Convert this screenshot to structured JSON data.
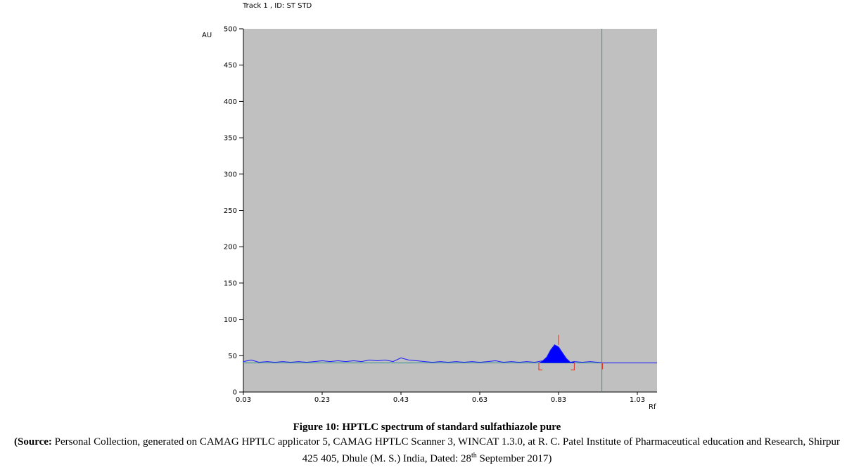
{
  "chart_data": {
    "type": "line",
    "title": "Track  1 , ID: ST STD",
    "xlabel": "Rf",
    "ylabel": "AU",
    "xlim": [
      0.03,
      1.08
    ],
    "ylim": [
      0,
      500
    ],
    "x_ticks": [
      "0.03",
      "0.23",
      "0.43",
      "0.63",
      "0.83",
      "1.03"
    ],
    "y_ticks": [
      "0",
      "50",
      "100",
      "150",
      "200",
      "250",
      "300",
      "350",
      "400",
      "450",
      "500"
    ],
    "baseline_au": 40,
    "front_rf": 0.94,
    "series": [
      {
        "x": [
          0.03,
          0.05,
          0.07,
          0.09,
          0.11,
          0.13,
          0.15,
          0.17,
          0.19,
          0.21,
          0.23,
          0.25,
          0.27,
          0.29,
          0.31,
          0.33,
          0.35,
          0.37,
          0.39,
          0.41,
          0.43,
          0.45,
          0.47,
          0.49,
          0.51,
          0.53,
          0.55,
          0.57,
          0.59,
          0.61,
          0.63,
          0.65,
          0.67,
          0.69,
          0.71,
          0.73,
          0.75,
          0.77,
          0.79,
          0.8,
          0.81,
          0.82,
          0.83,
          0.84,
          0.85,
          0.86,
          0.87,
          0.89,
          0.91,
          0.93,
          0.94,
          0.96,
          0.98,
          1.0,
          1.02,
          1.04,
          1.06,
          1.08
        ],
        "y": [
          42,
          44,
          41,
          42,
          41,
          42,
          41,
          42,
          41,
          42,
          43,
          42,
          43,
          42,
          43,
          42,
          44,
          43,
          44,
          42,
          47,
          44,
          43,
          42,
          41,
          42,
          41,
          42,
          41,
          42,
          41,
          42,
          43,
          41,
          42,
          41,
          42,
          41,
          43,
          48,
          58,
          65,
          62,
          54,
          46,
          41,
          42,
          41,
          42,
          41,
          40,
          40,
          40,
          40,
          40,
          40,
          40,
          40
        ]
      }
    ],
    "peaks": [
      {
        "rf_start": 0.78,
        "rf_max": 0.83,
        "rf_end": 0.87,
        "height_au": 65
      }
    ]
  },
  "caption": {
    "title": "Figure 10: HPTLC spectrum of standard sulfathiazole pure",
    "source_label": "(Source:",
    "source_text": " Personal Collection, generated on CAMAG HPTLC applicator 5, CAMAG HPTLC Scanner 3, WINCAT 1.3.0, at R. C. Patel Institute of Pharmaceutical education and Research, Shirpur 425 405, Dhule (M. S.) India, Dated: 28",
    "sup": "th",
    "date_tail": " September 2017)"
  },
  "colors": {
    "plot_bg": "#c0c0c0",
    "trace": "#1a1aff",
    "peak_fill": "#0000ff",
    "baseline": "#3a8f8f",
    "front_line": "#3a8f8f",
    "peak_marker": "#e0301e"
  }
}
